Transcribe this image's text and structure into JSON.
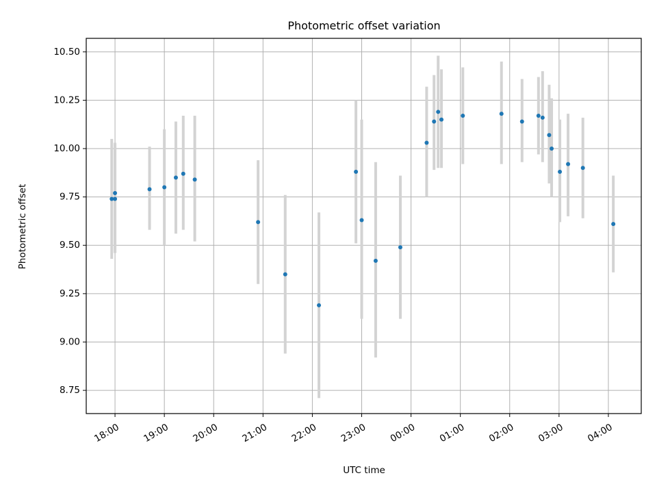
{
  "chart_data": {
    "type": "scatter",
    "title": "Photometric offset variation",
    "xlabel": "UTC time",
    "ylabel": "Photometric offset",
    "grid": true,
    "x_tick_labels": [
      "18:00",
      "19:00",
      "20:00",
      "21:00",
      "22:00",
      "23:00",
      "00:00",
      "01:00",
      "02:00",
      "03:00",
      "04:00"
    ],
    "y_tick_labels": [
      "8.75",
      "9.00",
      "9.25",
      "9.50",
      "9.75",
      "10.00",
      "10.25",
      "10.50"
    ],
    "xlim": [
      "17:25",
      "04:40"
    ],
    "ylim": [
      8.63,
      10.57
    ],
    "series": [
      {
        "marker_color": "#1f77b4",
        "errorbar_color": "#d3d3d3",
        "points": [
          {
            "t": "17:56",
            "y": 9.74,
            "lo": 9.43,
            "hi": 10.05
          },
          {
            "t": "18:00",
            "y": 9.77,
            "lo": 9.46,
            "hi": 10.03
          },
          {
            "t": "18:00",
            "y": 9.74,
            "lo": 9.46,
            "hi": 10.02
          },
          {
            "t": "18:42",
            "y": 9.79,
            "lo": 9.58,
            "hi": 10.01
          },
          {
            "t": "19:00",
            "y": 9.8,
            "lo": 9.5,
            "hi": 10.1
          },
          {
            "t": "19:14",
            "y": 9.85,
            "lo": 9.56,
            "hi": 10.14
          },
          {
            "t": "19:23",
            "y": 9.87,
            "lo": 9.58,
            "hi": 10.17
          },
          {
            "t": "19:37",
            "y": 9.84,
            "lo": 9.52,
            "hi": 10.17
          },
          {
            "t": "20:54",
            "y": 9.62,
            "lo": 9.3,
            "hi": 9.94
          },
          {
            "t": "21:27",
            "y": 9.35,
            "lo": 8.94,
            "hi": 9.76
          },
          {
            "t": "22:08",
            "y": 9.19,
            "lo": 8.71,
            "hi": 9.67
          },
          {
            "t": "22:53",
            "y": 9.88,
            "lo": 9.51,
            "hi": 10.25
          },
          {
            "t": "23:00",
            "y": 9.63,
            "lo": 9.12,
            "hi": 10.15
          },
          {
            "t": "23:17",
            "y": 9.42,
            "lo": 8.92,
            "hi": 9.93
          },
          {
            "t": "23:47",
            "y": 9.49,
            "lo": 9.12,
            "hi": 9.86
          },
          {
            "t": "00:19",
            "y": 10.03,
            "lo": 9.75,
            "hi": 10.32
          },
          {
            "t": "00:28",
            "y": 10.14,
            "lo": 9.89,
            "hi": 10.38
          },
          {
            "t": "00:33",
            "y": 10.19,
            "lo": 9.9,
            "hi": 10.48
          },
          {
            "t": "00:37",
            "y": 10.15,
            "lo": 9.9,
            "hi": 10.41
          },
          {
            "t": "01:03",
            "y": 10.17,
            "lo": 9.92,
            "hi": 10.42
          },
          {
            "t": "01:50",
            "y": 10.18,
            "lo": 9.92,
            "hi": 10.45
          },
          {
            "t": "02:15",
            "y": 10.14,
            "lo": 9.93,
            "hi": 10.36
          },
          {
            "t": "02:35",
            "y": 10.17,
            "lo": 9.97,
            "hi": 10.37
          },
          {
            "t": "02:40",
            "y": 10.16,
            "lo": 9.93,
            "hi": 10.4
          },
          {
            "t": "02:48",
            "y": 10.07,
            "lo": 9.82,
            "hi": 10.33
          },
          {
            "t": "02:51",
            "y": 10.0,
            "lo": 9.75,
            "hi": 10.26
          },
          {
            "t": "03:01",
            "y": 9.88,
            "lo": 9.62,
            "hi": 10.15
          },
          {
            "t": "03:11",
            "y": 9.92,
            "lo": 9.65,
            "hi": 10.18
          },
          {
            "t": "03:29",
            "y": 9.9,
            "lo": 9.64,
            "hi": 10.16
          },
          {
            "t": "04:06",
            "y": 9.61,
            "lo": 9.36,
            "hi": 9.86
          }
        ]
      }
    ]
  }
}
